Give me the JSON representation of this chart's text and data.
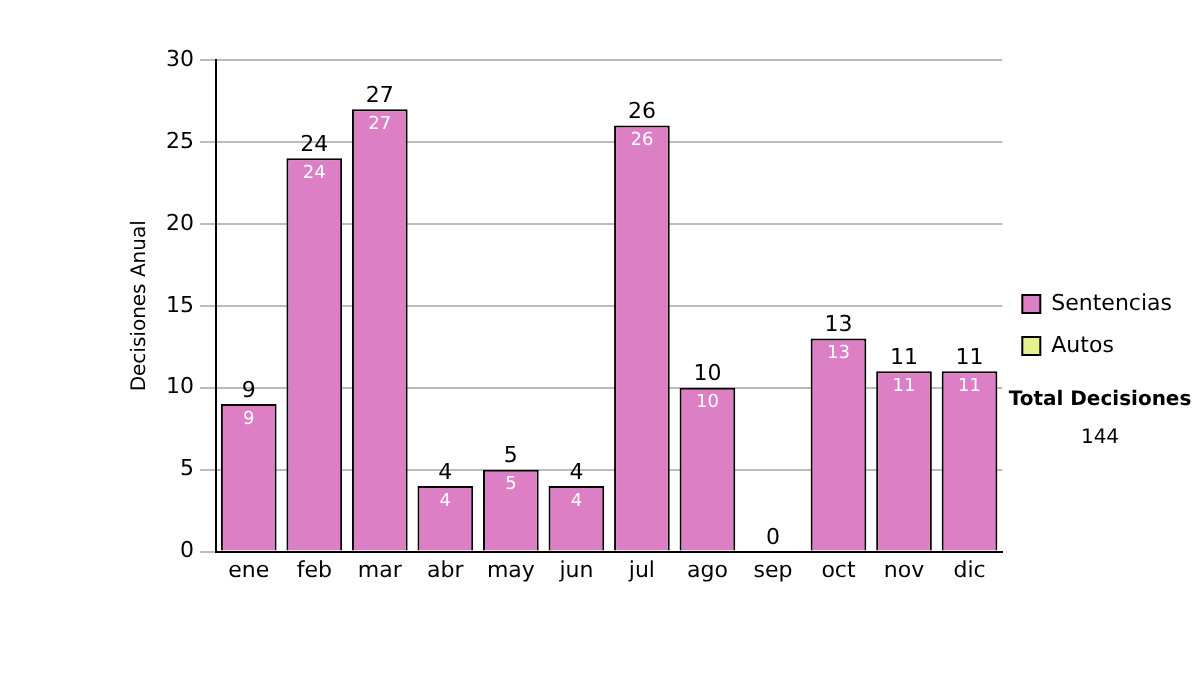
{
  "chart_data": {
    "type": "bar",
    "ylabel": "Decisiones Anual",
    "stacked": true,
    "categories": [
      "ene",
      "feb",
      "mar",
      "abr",
      "may",
      "jun",
      "jul",
      "ago",
      "sep",
      "oct",
      "nov",
      "dic"
    ],
    "series": [
      {
        "name": "Sentencias",
        "color": "#dd7fc4",
        "values": [
          9,
          24,
          27,
          4,
          5,
          4,
          26,
          10,
          0,
          13,
          11,
          11
        ],
        "value_labels": [
          "9",
          "24",
          "27",
          "4",
          "5",
          "4",
          "26",
          "10",
          null,
          "13",
          "11",
          "11"
        ]
      },
      {
        "name": "Autos",
        "color": "#e6f08c",
        "values": [
          0,
          0,
          0,
          0,
          0,
          0,
          0,
          0,
          0,
          0,
          0,
          0
        ]
      }
    ],
    "totals": [
      "9",
      "24",
      "27",
      "4",
      "5",
      "4",
      "26",
      "10",
      "0",
      "13",
      "11",
      "11"
    ],
    "ylim": [
      0,
      30
    ],
    "yticks": [
      0,
      5,
      10,
      15,
      20,
      25,
      30
    ],
    "grid": "y",
    "legend": "right",
    "annotations": [
      "Total Decisiones",
      "144"
    ]
  }
}
